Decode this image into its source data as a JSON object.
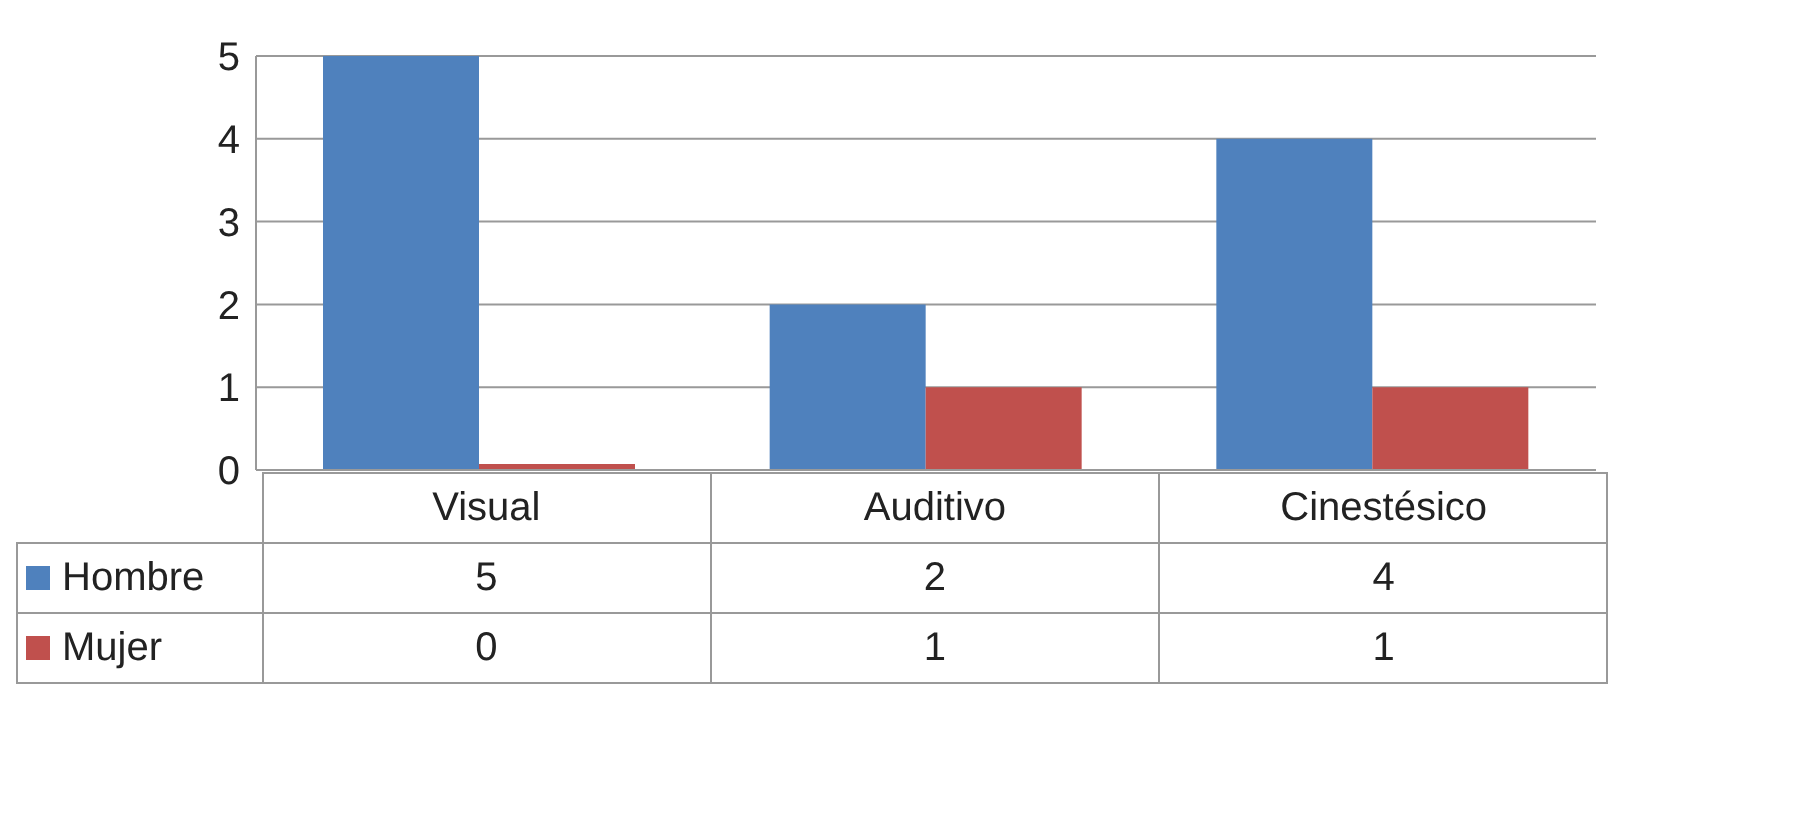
{
  "chart_data": {
    "type": "bar",
    "categories": [
      "Visual",
      "Auditivo",
      "Cinestésico"
    ],
    "series": [
      {
        "name": "Hombre",
        "color": "#4f81bd",
        "values": [
          5,
          2,
          4
        ]
      },
      {
        "name": "Mujer",
        "color": "#c0504d",
        "values": [
          0,
          1,
          1
        ]
      }
    ],
    "ylim": [
      0,
      5
    ],
    "yticks": [
      0,
      1,
      2,
      3,
      4,
      5
    ],
    "grid": "y",
    "legend": "bottom left",
    "data_labels": true
  }
}
